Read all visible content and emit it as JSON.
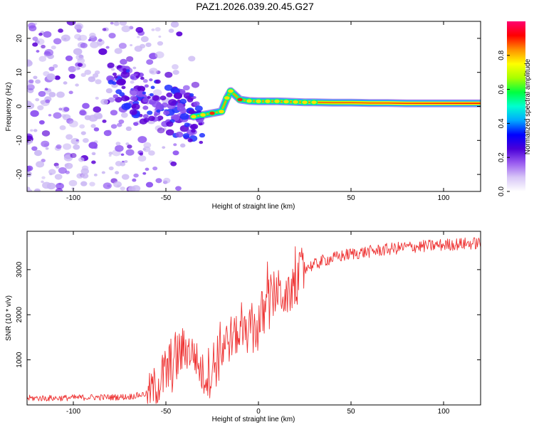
{
  "title": "PAZ1.2026.039.20.45.G27",
  "colors": {
    "signal": "#ee3333",
    "blob_weak": "#cbb8f4",
    "blob_mid": "#8a4df0",
    "blob_strong": "#5a00d6",
    "background": "#ffffff"
  },
  "chart_data": [
    {
      "type": "heatmap",
      "name": "spectrogram",
      "xlabel": "Height of straight line (km)",
      "ylabel": "Frequency (Hz)",
      "xlim": [
        -125,
        120
      ],
      "ylim": [
        -25,
        25
      ],
      "xticks": [
        -100,
        -50,
        0,
        50,
        100
      ],
      "yticks": [
        -20,
        -10,
        0,
        10,
        20
      ],
      "colorbar": {
        "label": "Normalized spectral amplitude",
        "range": [
          0,
          1
        ],
        "ticks": [
          "0.0",
          "0.2",
          "0.4",
          "0.6",
          "0.8"
        ],
        "tick_values": [
          0.0,
          0.2,
          0.4,
          0.6,
          0.8
        ],
        "stops": [
          "#ffffff",
          "#d8c6f7",
          "#9a5cf0",
          "#4a00d8",
          "#0000ff",
          "#00a8ff",
          "#00ffd0",
          "#00ff40",
          "#a8ff00",
          "#ffff00",
          "#ff9000",
          "#ff0000",
          "#ff0070"
        ]
      },
      "ridge": {
        "description": "dominant frequency track",
        "x": [
          -35,
          -30,
          -25,
          -20,
          -17,
          -15,
          -10,
          -5,
          0,
          5,
          10,
          15,
          20,
          25,
          30,
          40,
          50,
          60,
          70,
          80,
          90,
          100,
          110,
          120
        ],
        "y": [
          -3,
          -2.5,
          -2,
          -1.5,
          2.5,
          4.5,
          2,
          1.6,
          1.5,
          1.5,
          1.5,
          1.4,
          1.3,
          1.2,
          1.2,
          1.1,
          1.1,
          1.0,
          1.0,
          0.9,
          0.9,
          0.9,
          0.9,
          0.9
        ],
        "amplitude": [
          0.35,
          0.5,
          0.75,
          0.55,
          0.4,
          0.45,
          0.85,
          0.6,
          0.45,
          0.5,
          0.55,
          0.5,
          0.45,
          0.45,
          0.45,
          0.5,
          0.55,
          0.6,
          0.65,
          0.7,
          0.75,
          0.75,
          0.8,
          0.8
        ]
      }
    },
    {
      "type": "line",
      "name": "snr",
      "xlabel": "Height of straight line (km)",
      "ylabel": "SNR (10 * v/v)",
      "xlim": [
        -125,
        120
      ],
      "ylim": [
        0,
        3850
      ],
      "xticks": [
        -100,
        -50,
        0,
        50,
        100
      ],
      "yticks": [
        1000,
        2000,
        3000
      ],
      "series": [
        {
          "name": "SNR",
          "x": [
            -125,
            -110,
            -100,
            -90,
            -80,
            -70,
            -60,
            -55,
            -50,
            -45,
            -40,
            -35,
            -30,
            -25,
            -20,
            -15,
            -10,
            -5,
            0,
            5,
            10,
            15,
            20,
            25,
            30,
            35,
            40,
            50,
            60,
            70,
            80,
            90,
            100,
            110,
            120
          ],
          "values": [
            150,
            150,
            160,
            170,
            170,
            180,
            250,
            450,
            700,
            1000,
            1250,
            1150,
            650,
            800,
            1300,
            1500,
            1550,
            1600,
            1750,
            2200,
            2550,
            2350,
            2650,
            3050,
            3100,
            3200,
            3250,
            3350,
            3400,
            3450,
            3500,
            3520,
            3550,
            3570,
            3590
          ]
        }
      ]
    }
  ]
}
